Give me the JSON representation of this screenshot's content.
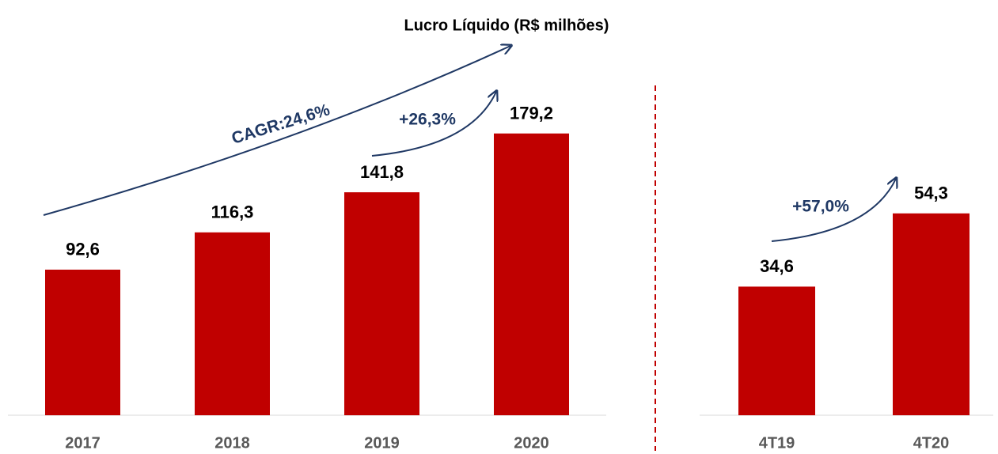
{
  "chart_data": [
    {
      "type": "bar",
      "title": "Lucro Líquido (R$ milhões)",
      "categories": [
        "2017",
        "2018",
        "2019",
        "2020"
      ],
      "values": [
        92.6,
        116.3,
        141.8,
        179.2
      ],
      "value_labels": [
        "92,6",
        "116,3",
        "141,8",
        "179,2"
      ],
      "color": "#c00000",
      "ylim": [
        0,
        250
      ],
      "annotations": [
        "CAGR:24,6%",
        "+26,3%"
      ]
    },
    {
      "type": "bar",
      "categories": [
        "4T19",
        "4T20"
      ],
      "values": [
        34.6,
        54.3
      ],
      "value_labels": [
        "34,6",
        "54,3"
      ],
      "color": "#c00000",
      "ylim": [
        0,
        100
      ],
      "annotations": [
        "+57,0%"
      ]
    }
  ]
}
